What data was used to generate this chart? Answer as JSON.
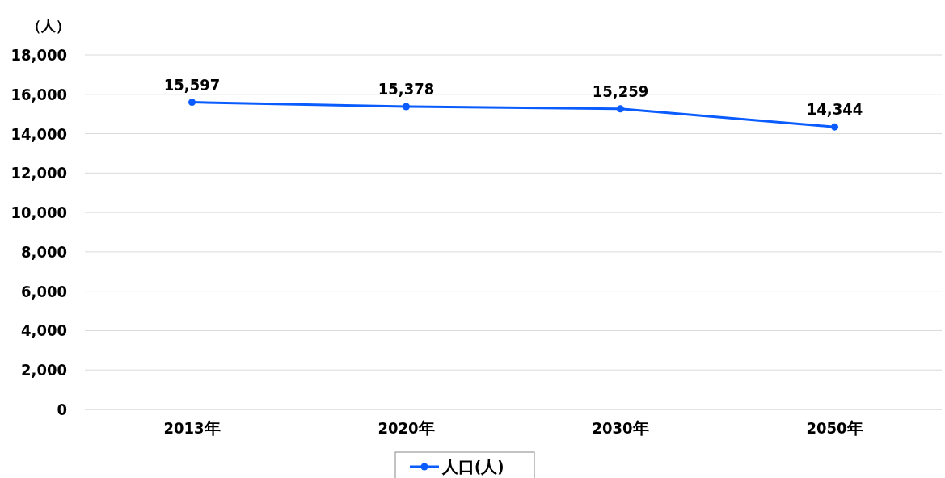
{
  "chart_data": {
    "type": "line",
    "ylabel": "（人）",
    "categories": [
      "2013年",
      "2020年",
      "2030年",
      "2050年"
    ],
    "series": [
      {
        "name": "人口(人)",
        "color": "#0a5cff",
        "values": [
          15597,
          15378,
          15259,
          14344
        ],
        "value_labels": [
          "15,597",
          "15,378",
          "15,259",
          "14,344"
        ]
      }
    ],
    "ylim": [
      0,
      18000
    ],
    "yticks": [
      0,
      {
        "value": 2000,
        "label": "2,000"
      },
      {
        "value": 4000,
        "label": "4,000"
      },
      {
        "value": 6000,
        "label": "6,000"
      },
      {
        "value": 8000,
        "label": "8,000"
      },
      {
        "value": 10000,
        "label": "10,000"
      },
      {
        "value": 12000,
        "label": "12,000"
      },
      {
        "value": 14000,
        "label": "14,000"
      },
      {
        "value": 16000,
        "label": "16,000"
      },
      {
        "value": 18000,
        "label": "18,000"
      }
    ],
    "grid": "y",
    "legend": "bottom",
    "marker": "circle",
    "line_style": "solid"
  }
}
